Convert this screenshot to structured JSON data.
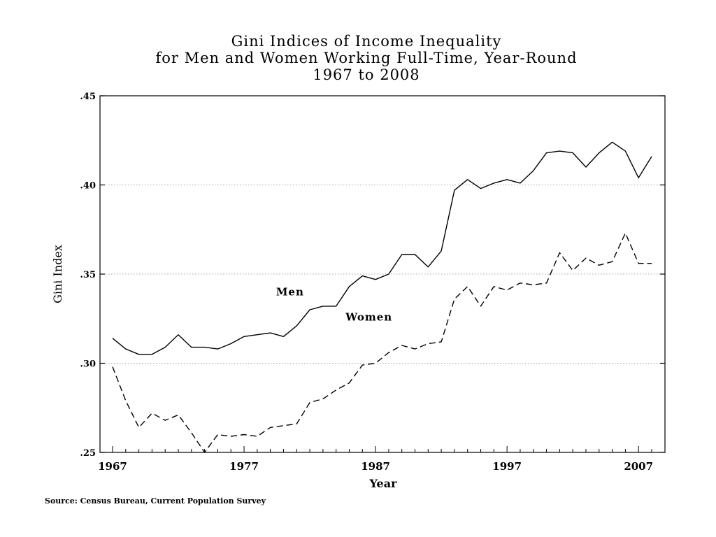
{
  "chart_data": {
    "type": "line",
    "title_lines": [
      "Gini Indices of Income Inequality",
      "for Men and Women Working Full-Time, Year-Round",
      "1967 to 2008"
    ],
    "xlabel": "Year",
    "ylabel": "Gini Index",
    "xlim": [
      1967,
      2008
    ],
    "ylim": [
      0.25,
      0.45
    ],
    "x_ticks": [
      1967,
      1977,
      1987,
      1997,
      2007
    ],
    "y_ticks": [
      {
        "value": 0.25,
        "label": ".25"
      },
      {
        "value": 0.3,
        "label": ".30"
      },
      {
        "value": 0.35,
        "label": ".35"
      },
      {
        "value": 0.4,
        "label": ".40"
      },
      {
        "value": 0.45,
        "label": ".45"
      }
    ],
    "grid": "horizontal-dotted",
    "x": [
      1967,
      1968,
      1969,
      1970,
      1971,
      1972,
      1973,
      1974,
      1975,
      1976,
      1977,
      1978,
      1979,
      1980,
      1981,
      1982,
      1983,
      1984,
      1985,
      1986,
      1987,
      1988,
      1989,
      1990,
      1991,
      1992,
      1993,
      1994,
      1995,
      1996,
      1997,
      1998,
      1999,
      2000,
      2001,
      2002,
      2003,
      2004,
      2005,
      2006,
      2007,
      2008
    ],
    "series": [
      {
        "name": "Men",
        "style": "solid",
        "label_at": [
          1980.5,
          0.338
        ],
        "values": [
          0.314,
          0.308,
          0.305,
          0.305,
          0.309,
          0.316,
          0.309,
          0.309,
          0.308,
          0.311,
          0.315,
          0.316,
          0.317,
          0.315,
          0.321,
          0.33,
          0.332,
          0.332,
          0.343,
          0.349,
          0.347,
          0.35,
          0.361,
          0.361,
          0.354,
          0.363,
          0.397,
          0.403,
          0.398,
          0.401,
          0.403,
          0.401,
          0.408,
          0.418,
          0.419,
          0.418,
          0.41,
          0.418,
          0.424,
          0.419,
          0.404,
          0.416
        ]
      },
      {
        "name": "Women",
        "style": "dashed",
        "label_at": [
          1986.5,
          0.324
        ],
        "values": [
          0.298,
          0.279,
          0.264,
          0.272,
          0.268,
          0.271,
          0.261,
          0.25,
          0.26,
          0.259,
          0.26,
          0.259,
          0.264,
          0.265,
          0.266,
          0.278,
          0.28,
          0.285,
          0.289,
          0.299,
          0.3,
          0.306,
          0.31,
          0.308,
          0.311,
          0.312,
          0.336,
          0.343,
          0.332,
          0.343,
          0.341,
          0.345,
          0.344,
          0.345,
          0.362,
          0.352,
          0.359,
          0.355,
          0.357,
          0.373,
          0.356,
          0.356
        ]
      }
    ]
  },
  "source": "Source: Census Bureau, Current Population Survey"
}
